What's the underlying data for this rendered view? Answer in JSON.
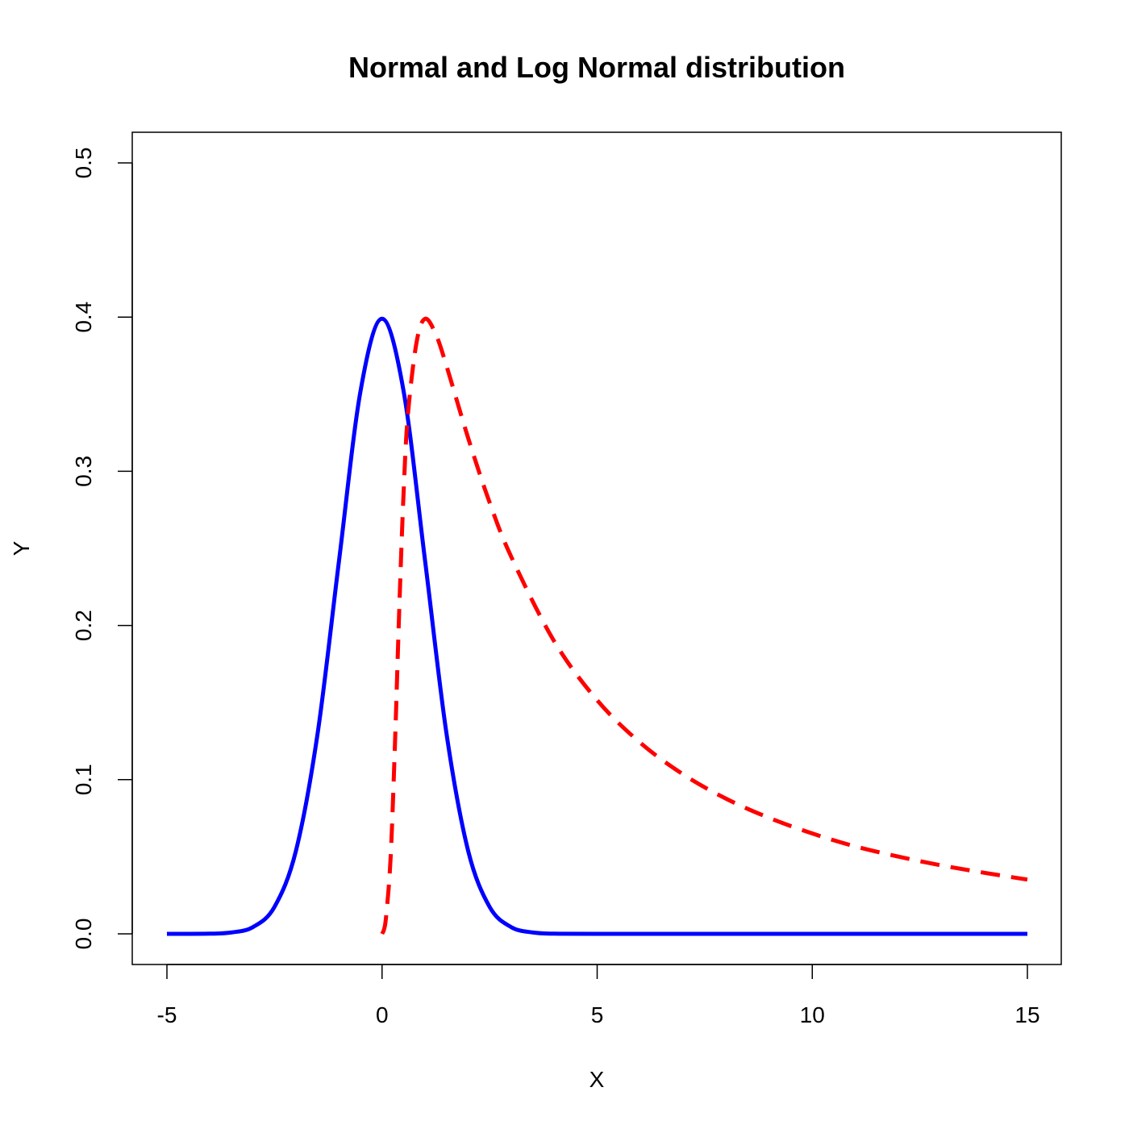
{
  "chart_data": {
    "type": "line",
    "title": "Normal and Log Normal distribution",
    "xlabel": "X",
    "ylabel": "Y",
    "xlim": [
      -5,
      15
    ],
    "ylim": [
      0,
      0.5
    ],
    "x_ticks": [
      -5,
      0,
      5,
      10,
      15
    ],
    "x_tick_labels": [
      "-5",
      "0",
      "5",
      "10",
      "15"
    ],
    "y_ticks": [
      0,
      0.1,
      0.2,
      0.3,
      0.4,
      0.5
    ],
    "y_tick_labels": [
      "0.0",
      "0.1",
      "0.2",
      "0.3",
      "0.4",
      "0.5"
    ],
    "grid": false,
    "legend": "none",
    "series": [
      {
        "name": "Normal",
        "color": "#0000ff",
        "style": "solid",
        "x": [
          -5,
          -4,
          -3.5,
          -3,
          -2.5,
          -2,
          -1.5,
          -1,
          -0.5,
          0,
          0.5,
          1,
          1.5,
          2,
          2.5,
          3,
          3.5,
          4,
          5,
          10,
          15
        ],
        "values": [
          0.0,
          0.0001,
          0.0009,
          0.0044,
          0.0175,
          0.054,
          0.1295,
          0.242,
          0.3521,
          0.3989,
          0.3521,
          0.242,
          0.1295,
          0.054,
          0.0175,
          0.0044,
          0.0009,
          0.0001,
          0.0,
          0.0,
          0.0
        ]
      },
      {
        "name": "Log Normal",
        "color": "#ff0000",
        "style": "dashed",
        "x": [
          0,
          0.05,
          0.1,
          0.2,
          0.3,
          0.4,
          0.5,
          0.6,
          0.8,
          1,
          1.25,
          1.5,
          2,
          2.5,
          3,
          4,
          5,
          6,
          7,
          8,
          9,
          10,
          11,
          12,
          13,
          14,
          15
        ],
        "values": [
          0.0,
          0.0032,
          0.0128,
          0.0497,
          0.1228,
          0.2104,
          0.2855,
          0.3364,
          0.3833,
          0.3989,
          0.3888,
          0.3682,
          0.3217,
          0.2798,
          0.2447,
          0.1898,
          0.1515,
          0.124,
          0.1034,
          0.0876,
          0.0752,
          0.0651,
          0.0567,
          0.0501,
          0.0444,
          0.0396,
          0.0352
        ]
      }
    ]
  }
}
